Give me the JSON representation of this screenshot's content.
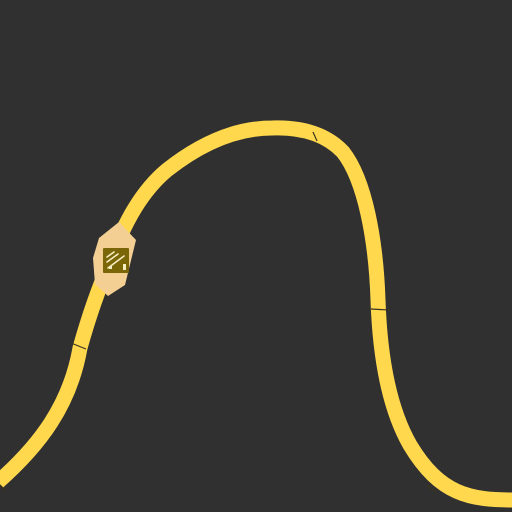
{
  "map": {
    "background_color": "#303030",
    "road": {
      "type": "highway-segment",
      "color": "#ffd84d",
      "tick_color": "#3a3320"
    },
    "shield": {
      "icon": "route-shield-icon",
      "highlight_color": "#f3cf94",
      "badge_color": "#7a6606",
      "glyph_color": "#f5ecc2"
    }
  }
}
